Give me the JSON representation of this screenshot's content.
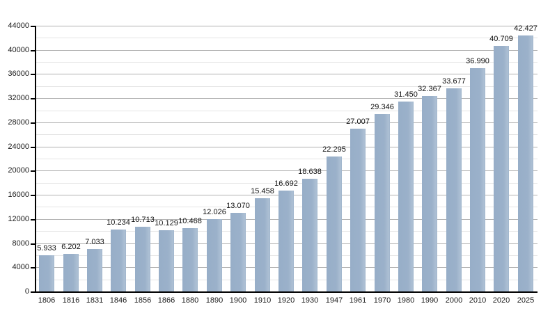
{
  "chart_data": {
    "type": "bar",
    "title": "",
    "xlabel": "",
    "ylabel": "",
    "categories": [
      "1806",
      "1816",
      "1831",
      "1846",
      "1856",
      "1866",
      "1880",
      "1890",
      "1900",
      "1910",
      "1920",
      "1930",
      "1947",
      "1961",
      "1970",
      "1980",
      "1990",
      "2000",
      "2010",
      "2020",
      "2025"
    ],
    "values": [
      5933,
      6202,
      7033,
      10234,
      10713,
      10129,
      10468,
      12026,
      13070,
      15458,
      16692,
      18638,
      22295,
      27007,
      29346,
      31450,
      32367,
      33677,
      36990,
      40709,
      42427
    ],
    "value_labels": [
      "5.933",
      "6.202",
      "7.033",
      "10.234",
      "10.713",
      "10.129",
      "10.468",
      "12.026",
      "13.070",
      "15.458",
      "16.692",
      "18.638",
      "22.295",
      "27.007",
      "29.346",
      "31.450",
      "32.367",
      "33.677",
      "36.990",
      "40.709",
      "42.427"
    ],
    "ylim": [
      0,
      44000
    ],
    "y_major_step": 4000,
    "y_minor_step": 2000,
    "y_tick_labels": [
      "0",
      "4000",
      "8000",
      "12000",
      "16000",
      "20000",
      "24000",
      "28000",
      "32000",
      "36000",
      "40000",
      "44000"
    ],
    "grid": "on",
    "legend": "none",
    "bar_color": "#9bb1ca",
    "major_grid_color": "#b0b0b0",
    "minor_grid_color": "#e4e4e4",
    "axis_color": "#000000",
    "text_color": "#111111"
  }
}
